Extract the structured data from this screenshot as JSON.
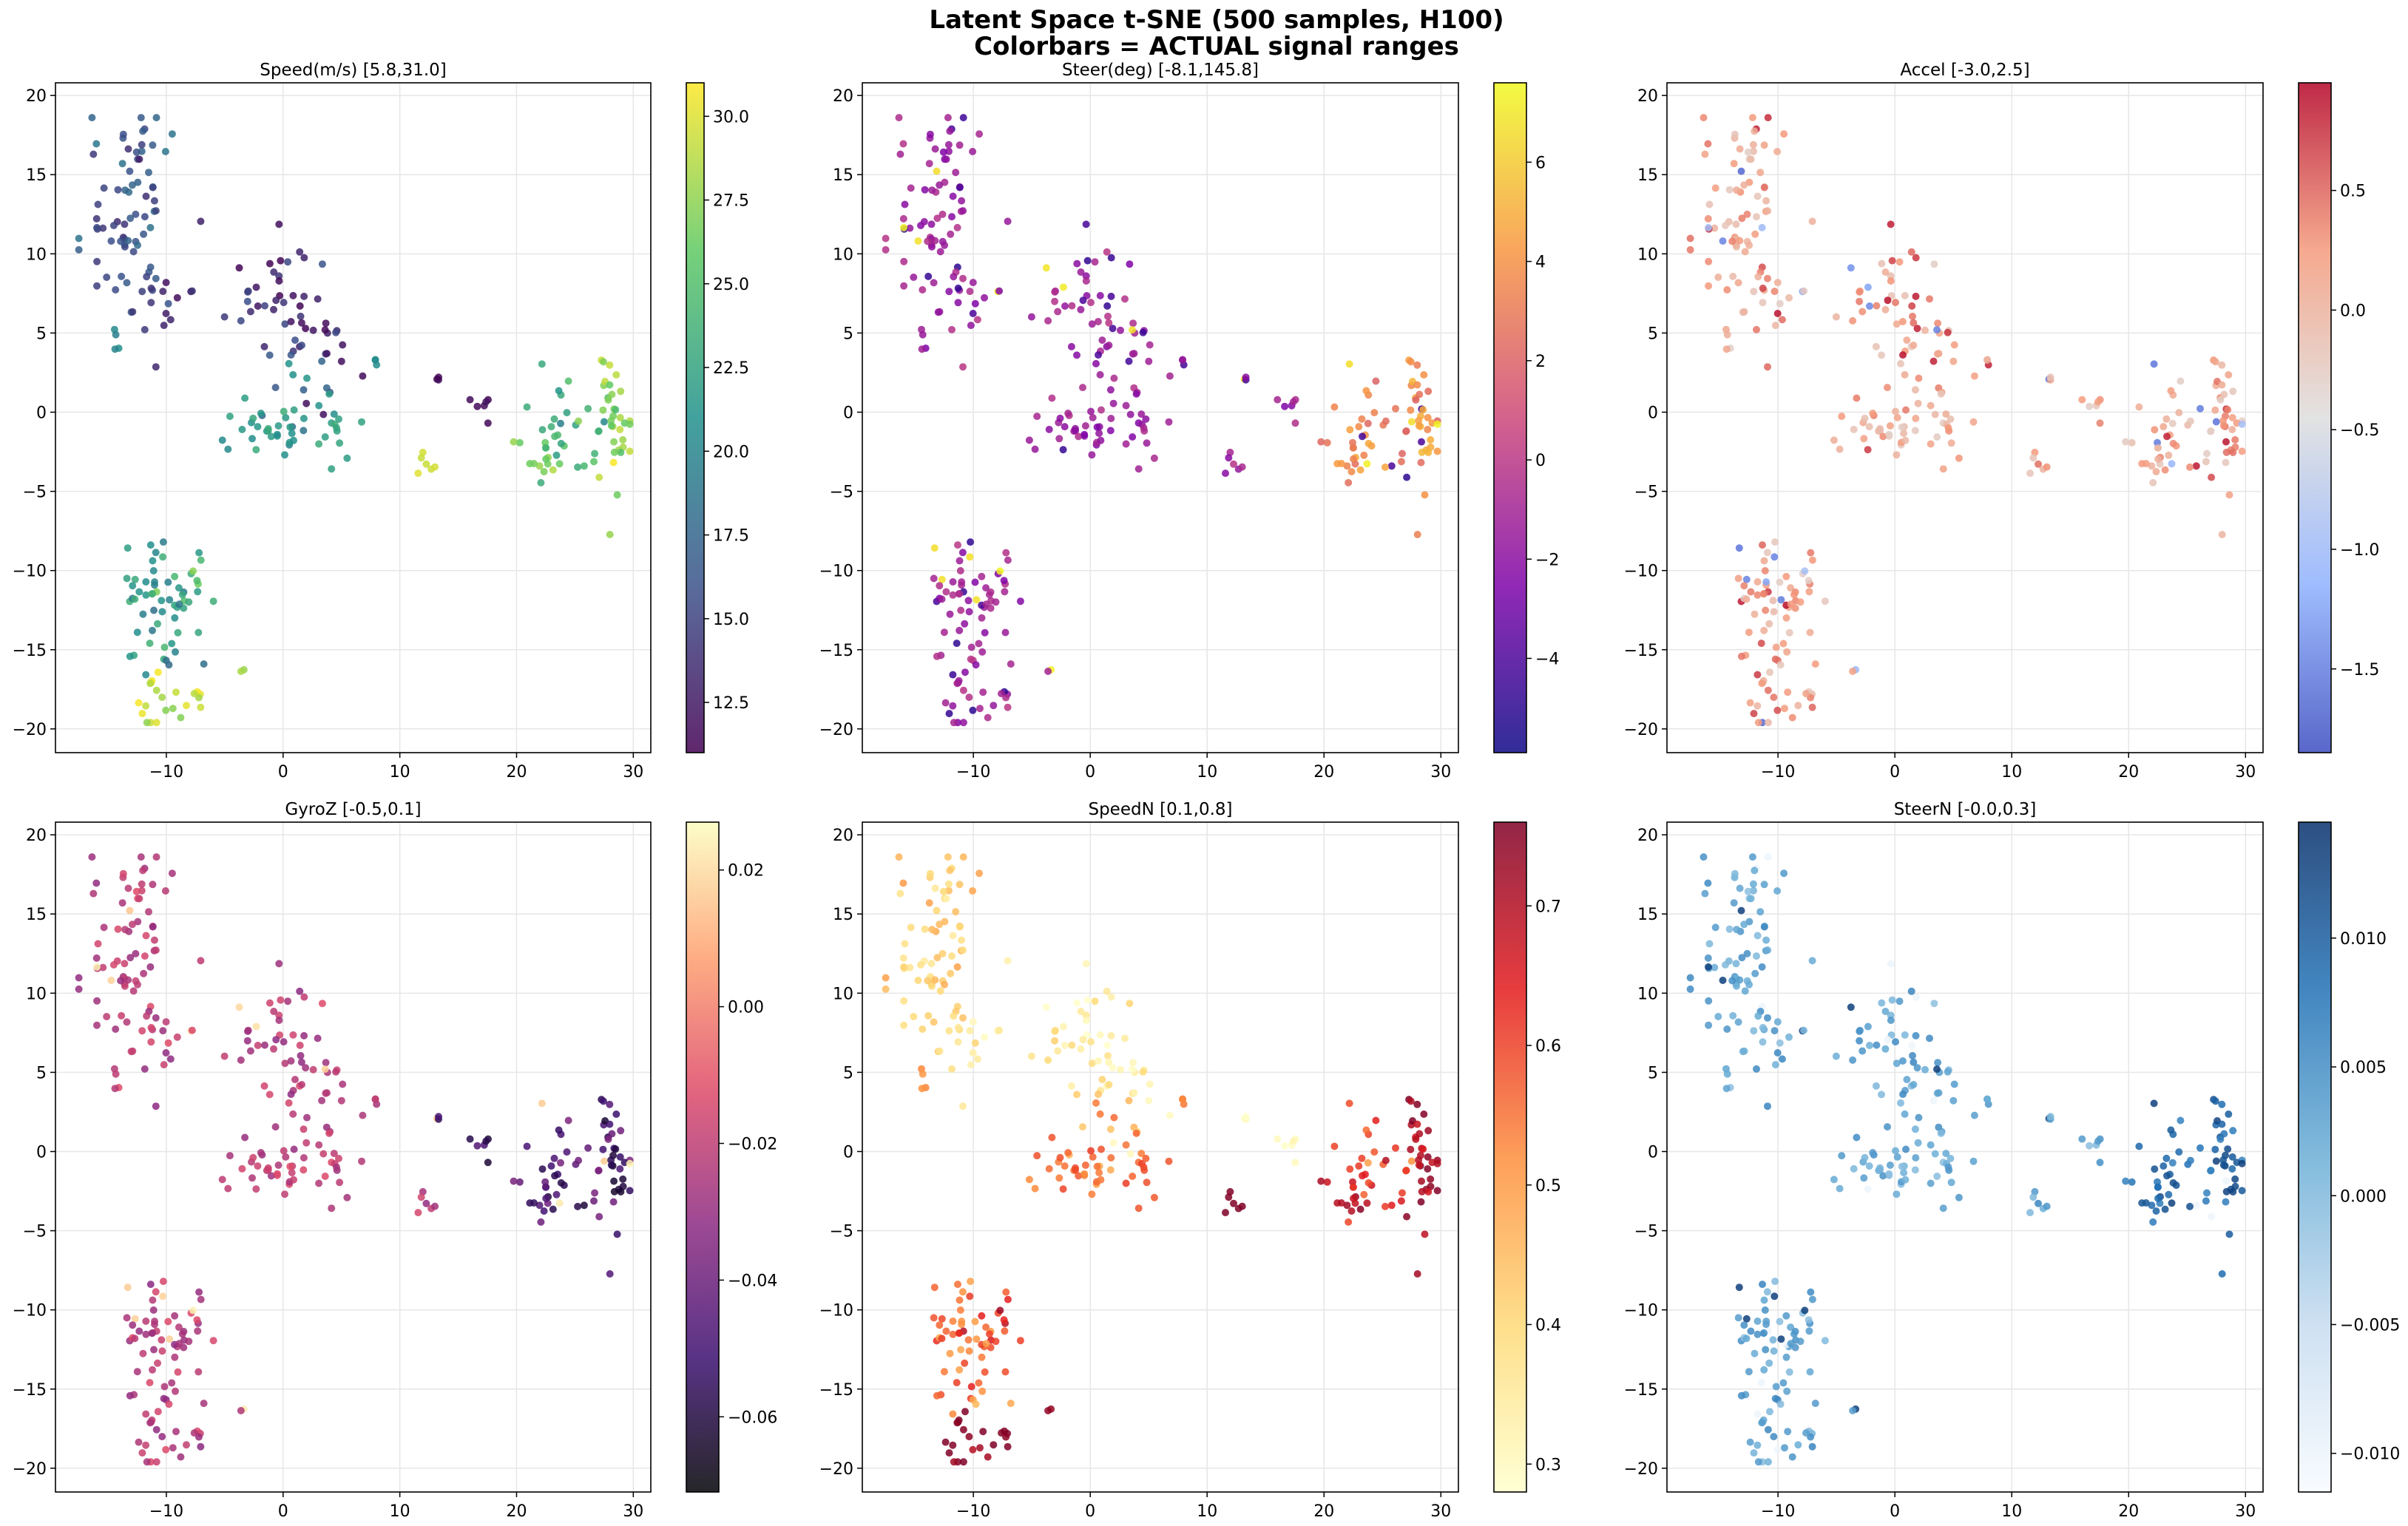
{
  "figure": {
    "title_line1": "Latent Space t-SNE (500 samples, H100)",
    "title_line2": "Colorbars = ACTUAL signal ranges"
  },
  "chart_data": [
    {
      "type": "scatter",
      "title": "Speed(m/s)  [5.8,31.0]",
      "xlim": [
        -19.5,
        31.5
      ],
      "ylim": [
        -21.5,
        20.8
      ],
      "xticks": [
        -10,
        0,
        10,
        20,
        30
      ],
      "yticks": [
        -20,
        -15,
        -10,
        -5,
        0,
        5,
        10,
        15,
        20
      ],
      "xticklabels": [
        "−10",
        "0",
        "10",
        "20",
        "30"
      ],
      "yticklabels": [
        "−20",
        "−15",
        "−10",
        "−5",
        "0",
        "5",
        "10",
        "15",
        "20"
      ],
      "grid": true,
      "colormap": "viridis",
      "colormap_stops": [
        "#440154",
        "#3b528b",
        "#21918c",
        "#5ec962",
        "#fde725"
      ],
      "color_range": [
        11,
        31
      ],
      "colorbar_ticks": [
        12.5,
        15.0,
        17.5,
        20.0,
        22.5,
        25.0,
        27.5,
        30.0
      ],
      "colorbar_ticklabels": [
        "12.5",
        "15.0",
        "17.5",
        "20.0",
        "22.5",
        "25.0",
        "27.5",
        "30.0"
      ]
    },
    {
      "type": "scatter",
      "title": "Steer(deg)  [-8.1,145.8]",
      "xlim": [
        -19.5,
        31.5
      ],
      "ylim": [
        -21.5,
        20.8
      ],
      "xticks": [
        -10,
        0,
        10,
        20,
        30
      ],
      "yticks": [
        -20,
        -15,
        -10,
        -5,
        0,
        5,
        10,
        15,
        20
      ],
      "xticklabels": [
        "−10",
        "0",
        "10",
        "20",
        "30"
      ],
      "yticklabels": [
        "−20",
        "−15",
        "−10",
        "−5",
        "0",
        "5",
        "10",
        "15",
        "20"
      ],
      "grid": true,
      "colormap": "plasma",
      "colormap_stops": [
        "#0d0887",
        "#7e03a8",
        "#cc4778",
        "#f89540",
        "#f0f921"
      ],
      "color_range": [
        -5.9,
        7.6
      ],
      "colorbar_ticks": [
        -4,
        -2,
        0,
        2,
        4,
        6
      ],
      "colorbar_ticklabels": [
        "−4",
        "−2",
        "0",
        "2",
        "4",
        "6"
      ]
    },
    {
      "type": "scatter",
      "title": "Accel  [-3.0,2.5]",
      "xlim": [
        -19.5,
        31.5
      ],
      "ylim": [
        -21.5,
        20.8
      ],
      "xticks": [
        -10,
        0,
        10,
        20,
        30
      ],
      "yticks": [
        -20,
        -15,
        -10,
        -5,
        0,
        5,
        10,
        15,
        20
      ],
      "xticklabels": [
        "−10",
        "0",
        "10",
        "20",
        "30"
      ],
      "yticklabels": [
        "−20",
        "−15",
        "−10",
        "−5",
        "0",
        "5",
        "10",
        "15",
        "20"
      ],
      "grid": true,
      "colormap": "coolwarm",
      "colormap_stops": [
        "#3b4cc0",
        "#8db0fe",
        "#dddddd",
        "#f49a7b",
        "#b40426"
      ],
      "color_range": [
        -1.85,
        0.95
      ],
      "colorbar_ticks": [
        -1.5,
        -1.0,
        -0.5,
        0.0,
        0.5
      ],
      "colorbar_ticklabels": [
        "−1.5",
        "−1.0",
        "−0.5",
        "0.0",
        "0.5"
      ]
    },
    {
      "type": "scatter",
      "title": "GyroZ  [-0.5,0.1]",
      "xlim": [
        -19.5,
        31.5
      ],
      "ylim": [
        -21.5,
        20.8
      ],
      "xticks": [
        -10,
        0,
        10,
        20,
        30
      ],
      "yticks": [
        -20,
        -15,
        -10,
        -5,
        0,
        5,
        10,
        15,
        20
      ],
      "xticklabels": [
        "−10",
        "0",
        "10",
        "20",
        "30"
      ],
      "yticklabels": [
        "−20",
        "−15",
        "−10",
        "−5",
        "0",
        "5",
        "10",
        "15",
        "20"
      ],
      "grid": true,
      "colormap": "magma",
      "colormap_stops": [
        "#000004",
        "#3b0f70",
        "#8c2981",
        "#de4968",
        "#fe9f6d",
        "#fcfdbf"
      ],
      "color_range": [
        -0.071,
        0.027
      ],
      "colorbar_ticks": [
        -0.06,
        -0.04,
        -0.02,
        0.0,
        0.02
      ],
      "colorbar_ticklabels": [
        "−0.06",
        "−0.04",
        "−0.02",
        "0.00",
        "0.02"
      ]
    },
    {
      "type": "scatter",
      "title": "SpeedN  [0.1,0.8]",
      "xlim": [
        -19.5,
        31.5
      ],
      "ylim": [
        -21.5,
        20.8
      ],
      "xticks": [
        -10,
        0,
        10,
        20,
        30
      ],
      "yticks": [
        -20,
        -15,
        -10,
        -5,
        0,
        5,
        10,
        15,
        20
      ],
      "xticklabels": [
        "−10",
        "0",
        "10",
        "20",
        "30"
      ],
      "yticklabels": [
        "−20",
        "−15",
        "−10",
        "−5",
        "0",
        "5",
        "10",
        "15",
        "20"
      ],
      "grid": true,
      "colormap": "YlOrRd",
      "colormap_stops": [
        "#ffffcc",
        "#fed976",
        "#fd8d3c",
        "#e31a1c",
        "#800026"
      ],
      "color_range": [
        0.28,
        0.76
      ],
      "colorbar_ticks": [
        0.3,
        0.4,
        0.5,
        0.6,
        0.7
      ],
      "colorbar_ticklabels": [
        "0.3",
        "0.4",
        "0.5",
        "0.6",
        "0.7"
      ]
    },
    {
      "type": "scatter",
      "title": "SteerN  [-0.0,0.3]",
      "xlim": [
        -19.5,
        31.5
      ],
      "ylim": [
        -21.5,
        20.8
      ],
      "xticks": [
        -10,
        0,
        10,
        20,
        30
      ],
      "yticks": [
        -20,
        -15,
        -10,
        -5,
        0,
        5,
        10,
        15,
        20
      ],
      "xticklabels": [
        "−10",
        "0",
        "10",
        "20",
        "30"
      ],
      "yticklabels": [
        "−20",
        "−15",
        "−10",
        "−5",
        "0",
        "5",
        "10",
        "15",
        "20"
      ],
      "grid": true,
      "colormap": "Blues",
      "colormap_stops": [
        "#f7fbff",
        "#c6dbef",
        "#6baed6",
        "#2171b5",
        "#08306b"
      ],
      "color_range": [
        -0.0115,
        0.0145
      ],
      "colorbar_ticks": [
        -0.01,
        -0.005,
        0.0,
        0.005,
        0.01
      ],
      "colorbar_ticklabels": [
        "−0.010",
        "−0.005",
        "0.000",
        "0.005",
        "0.010"
      ]
    }
  ]
}
